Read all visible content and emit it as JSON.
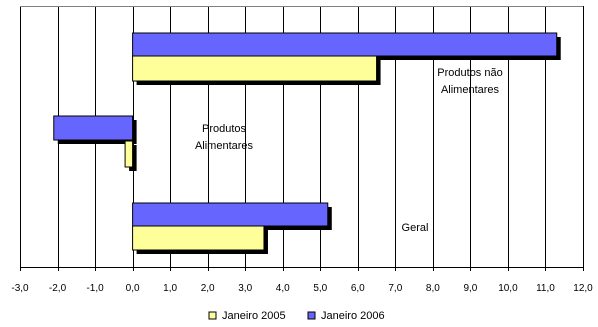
{
  "chart_data": {
    "type": "bar",
    "orientation": "horizontal",
    "categories": [
      "Produtos não Alimentares",
      "Produtos Alimentares",
      "Geral"
    ],
    "category_labels": [
      [
        "Produtos não",
        "Alimentares"
      ],
      [
        "Produtos",
        "Alimentares"
      ],
      [
        "Geral"
      ]
    ],
    "series": [
      {
        "name": "Janeiro 2006",
        "values": [
          11.3,
          -2.1,
          5.2
        ],
        "color": "#6666ff"
      },
      {
        "name": "Janeiro 2005",
        "values": [
          6.5,
          -0.2,
          3.5
        ],
        "color": "#ffff99"
      }
    ],
    "xlim": [
      -3.0,
      12.0
    ],
    "x_ticks": [
      "-3,0",
      "-2,0",
      "-1,0",
      "0,0",
      "1,0",
      "2,0",
      "3,0",
      "4,0",
      "5,0",
      "6,0",
      "7,0",
      "8,0",
      "9,0",
      "10,0",
      "11,0",
      "12,0"
    ],
    "legend": {
      "placement": "bottom",
      "items": [
        "Janeiro 2005",
        "Janeiro 2006"
      ]
    },
    "grid": true,
    "gridline_color": "#000000",
    "shadow_color": "#000000",
    "title": "",
    "xlabel": "",
    "ylabel": ""
  }
}
